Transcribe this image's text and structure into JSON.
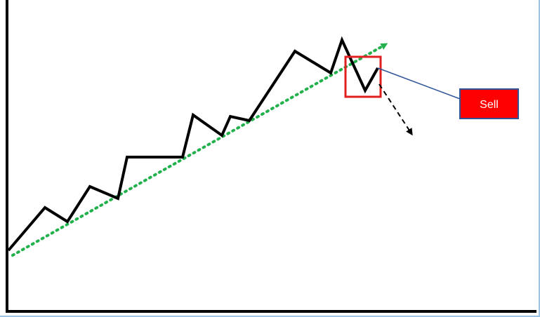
{
  "diagram": {
    "sell_label": "Sell",
    "colors": {
      "price_line": "#000000",
      "trend_line": "#22b14c",
      "highlight_box": "#e02020",
      "sell_box_fill": "#ff0000",
      "sell_box_border": "#2f5597",
      "callout_line": "#2f5597",
      "projection_arrow": "#000000",
      "axes": "#000000",
      "frame_accent": "#9dc3e6"
    },
    "elements": [
      "price-zigzag-line",
      "uptrend-line",
      "trend-break-highlight-box",
      "downward-projection-arrow",
      "callout-line",
      "sell-label-box"
    ]
  }
}
